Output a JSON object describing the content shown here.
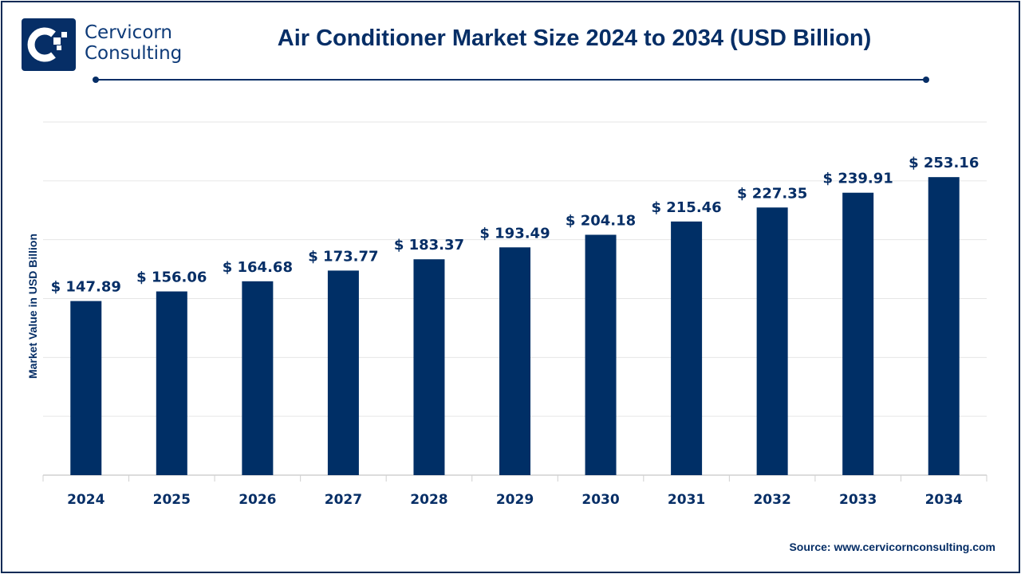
{
  "brand": {
    "name_line1": "Cervicorn",
    "name_line2": "Consulting"
  },
  "source": "Source: www.cervicornconsulting.com",
  "colors": {
    "bar": "#002F66",
    "text": "#062E66",
    "grid": "#E6E6E6"
  },
  "chart_data": {
    "type": "bar",
    "title": "Air Conditioner Market Size 2024 to 2034 (USD Billion)",
    "xlabel": "",
    "ylabel": "Market Value in USD Billion",
    "categories": [
      "2024",
      "2025",
      "2026",
      "2027",
      "2028",
      "2029",
      "2030",
      "2031",
      "2032",
      "2033",
      "2034"
    ],
    "values": [
      147.89,
      156.06,
      164.68,
      173.77,
      183.37,
      193.49,
      204.18,
      215.46,
      227.35,
      239.91,
      253.16
    ],
    "labels": [
      "$ 147.89",
      "$ 156.06",
      "$ 164.68",
      "$ 173.77",
      "$ 183.37",
      "$ 193.49",
      "$ 204.18",
      "$ 215.46",
      "$ 227.35",
      "$ 239.91",
      "$ 253.16"
    ],
    "ylim": [
      0,
      300
    ],
    "grid": true,
    "grid_step": 50
  }
}
